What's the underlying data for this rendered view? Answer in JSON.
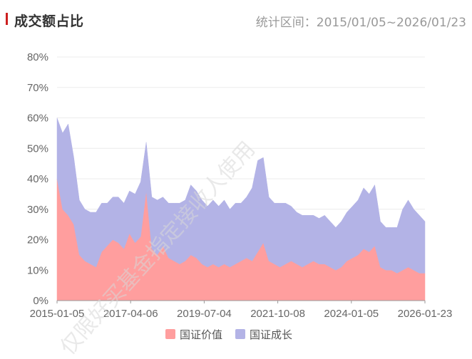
{
  "header": {
    "title": "成交额占比",
    "range_label": "统计区间：2015/01/05~2026/01/23",
    "marker_color": "#cc1f1f"
  },
  "watermark": {
    "text": "仅限好买基金指定接收人使用"
  },
  "chart_data": {
    "type": "area",
    "stacked": true,
    "title": "成交额占比",
    "subtitle": "统计区间：2015/01/05~2026/01/23",
    "xlabel": "",
    "ylabel": "",
    "x_ticks": [
      "2015-01-05",
      "2017-04-06",
      "2019-07-04",
      "2021-10-08",
      "2024-01-05",
      "2026-01-23"
    ],
    "y_ticks": [
      "0%",
      "10%",
      "20%",
      "30%",
      "40%",
      "50%",
      "60%",
      "70%",
      "80%"
    ],
    "ylim": [
      0,
      80
    ],
    "grid": true,
    "legend_position": "bottom",
    "x": [
      "2015-01",
      "2015-03",
      "2015-05",
      "2015-07",
      "2015-09",
      "2015-11",
      "2016-01",
      "2016-03",
      "2016-05",
      "2016-07",
      "2016-09",
      "2016-11",
      "2017-01",
      "2017-03",
      "2017-05",
      "2017-07",
      "2017-09",
      "2017-11",
      "2018-01",
      "2018-03",
      "2018-05",
      "2018-07",
      "2018-09",
      "2018-11",
      "2019-01",
      "2019-03",
      "2019-05",
      "2019-07",
      "2019-09",
      "2019-11",
      "2020-01",
      "2020-03",
      "2020-05",
      "2020-07",
      "2020-09",
      "2020-11",
      "2021-01",
      "2021-03",
      "2021-05",
      "2021-07",
      "2021-09",
      "2021-11",
      "2022-01",
      "2022-03",
      "2022-05",
      "2022-07",
      "2022-09",
      "2022-11",
      "2023-01",
      "2023-03",
      "2023-05",
      "2023-07",
      "2023-09",
      "2023-11",
      "2024-01",
      "2024-03",
      "2024-05",
      "2024-07",
      "2024-09",
      "2024-11",
      "2025-01",
      "2025-03",
      "2025-05",
      "2025-07",
      "2025-09",
      "2025-11",
      "2026-01"
    ],
    "series": [
      {
        "name": "国证价值",
        "color": "#ff9e9e",
        "values": [
          40,
          30,
          28,
          25,
          15,
          13,
          12,
          11,
          16,
          18,
          20,
          19,
          17,
          22,
          19,
          21,
          36,
          17,
          15,
          18,
          14,
          13,
          12,
          13,
          15,
          14,
          12,
          11,
          12,
          11,
          12,
          11,
          12,
          13,
          14,
          13,
          16,
          19,
          13,
          12,
          11,
          12,
          13,
          12,
          11,
          12,
          13,
          12,
          12,
          11,
          10,
          11,
          13,
          14,
          15,
          17,
          16,
          18,
          11,
          10,
          10,
          9,
          10,
          11,
          10,
          9,
          9
        ]
      },
      {
        "name": "国证成长",
        "color": "#b3b3e6",
        "values": [
          20,
          25,
          30,
          22,
          18,
          17,
          17,
          18,
          16,
          14,
          14,
          15,
          15,
          14,
          16,
          18,
          16,
          17,
          18,
          16,
          18,
          19,
          20,
          20,
          23,
          22,
          21,
          20,
          21,
          20,
          21,
          19,
          20,
          19,
          20,
          24,
          30,
          28,
          21,
          20,
          21,
          20,
          18,
          17,
          17,
          16,
          15,
          15,
          16,
          15,
          14,
          15,
          16,
          17,
          18,
          20,
          19,
          20,
          15,
          14,
          14,
          15,
          20,
          22,
          20,
          19,
          17
        ]
      }
    ]
  }
}
